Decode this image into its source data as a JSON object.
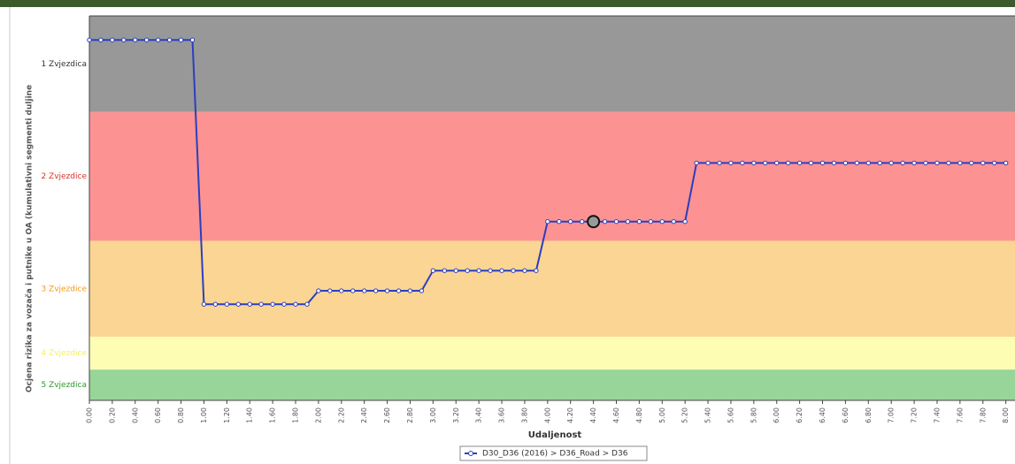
{
  "chart_data": {
    "type": "line",
    "y_axis_label": "Ocjena rizika za vozača i putnike u OA (kumulativni segmenti duljine",
    "x_axis_label": "Udaljenost",
    "bands": [
      {
        "label": "1 Zvjezdica",
        "from": 30,
        "to": 40,
        "color": "#989898",
        "text_color": "#333333"
      },
      {
        "label": "2 Zvjezdice",
        "from": 16.6,
        "to": 30,
        "color": "#fc9292",
        "text_color": "#e0302a"
      },
      {
        "label": "3 Zvjezdice",
        "from": 6.6,
        "to": 16.6,
        "color": "#fbd593",
        "text_color": "#f09a1a"
      },
      {
        "label": "4 Zvjezdice",
        "from": 3.2,
        "to": 6.6,
        "color": "#fefdb4",
        "text_color": "#f5f060"
      },
      {
        "label": "5 Zvjezdica",
        "from": 0,
        "to": 3.2,
        "color": "#98d598",
        "text_color": "#2a9a2a"
      }
    ],
    "xlim": [
      0,
      8.08
    ],
    "ylim": [
      0,
      40
    ],
    "xticks": [
      {
        "value": 0,
        "label": "0.00"
      },
      {
        "value": 0.2,
        "label": "0.20"
      },
      {
        "value": 0.4,
        "label": "0.40"
      },
      {
        "value": 0.6,
        "label": "0.60"
      },
      {
        "value": 0.8,
        "label": "0.80"
      },
      {
        "value": 1,
        "label": "1.00"
      },
      {
        "value": 1.2,
        "label": "1.20"
      },
      {
        "value": 1.4,
        "label": "1.40"
      },
      {
        "value": 1.6,
        "label": "1.60"
      },
      {
        "value": 1.8,
        "label": "1.80"
      },
      {
        "value": 2,
        "label": "2.00"
      },
      {
        "value": 2.2,
        "label": "2.20"
      },
      {
        "value": 2.4,
        "label": "2.40"
      },
      {
        "value": 2.6,
        "label": "2.60"
      },
      {
        "value": 2.8,
        "label": "2.80"
      },
      {
        "value": 3,
        "label": "3.00"
      },
      {
        "value": 3.2,
        "label": "3.20"
      },
      {
        "value": 3.4,
        "label": "3.40"
      },
      {
        "value": 3.6,
        "label": "3.60"
      },
      {
        "value": 3.8,
        "label": "3.80"
      },
      {
        "value": 4,
        "label": "4.00"
      },
      {
        "value": 4.2,
        "label": "4.20"
      },
      {
        "value": 4.4,
        "label": "4.40"
      },
      {
        "value": 4.6,
        "label": "4.60"
      },
      {
        "value": 4.8,
        "label": "4.80"
      },
      {
        "value": 5,
        "label": "5.00"
      },
      {
        "value": 5.2,
        "label": "5.20"
      },
      {
        "value": 5.4,
        "label": "5.40"
      },
      {
        "value": 5.6,
        "label": "5.60"
      },
      {
        "value": 5.8,
        "label": "5.80"
      },
      {
        "value": 6,
        "label": "6.00"
      },
      {
        "value": 6.2,
        "label": "6.20"
      },
      {
        "value": 6.4,
        "label": "6.40"
      },
      {
        "value": 6.6,
        "label": "6.60"
      },
      {
        "value": 6.8,
        "label": "6.80"
      },
      {
        "value": 7,
        "label": "7.00"
      },
      {
        "value": 7.2,
        "label": "7.20"
      },
      {
        "value": 7.4,
        "label": "7.40"
      },
      {
        "value": 7.6,
        "label": "7.60"
      },
      {
        "value": 7.8,
        "label": "7.80"
      },
      {
        "value": 8,
        "label": "8.00"
      }
    ],
    "x": [
      0,
      0.1,
      0.2,
      0.3,
      0.4,
      0.5,
      0.6,
      0.7,
      0.8,
      0.9,
      1,
      1.1,
      1.2,
      1.3,
      1.4,
      1.5,
      1.6,
      1.7,
      1.8,
      1.9,
      2,
      2.1,
      2.2,
      2.3,
      2.4,
      2.5,
      2.6,
      2.7,
      2.8,
      2.9,
      3,
      3.1,
      3.2,
      3.3,
      3.4,
      3.5,
      3.6,
      3.7,
      3.8,
      3.9,
      4,
      4.1,
      4.2,
      4.3,
      4.4,
      4.5,
      4.6,
      4.7,
      4.8,
      4.9,
      5,
      5.1,
      5.2,
      5.3,
      5.4,
      5.5,
      5.6,
      5.7,
      5.8,
      5.9,
      6,
      6.1,
      6.2,
      6.3,
      6.4,
      6.5,
      6.6,
      6.7,
      6.8,
      6.9,
      7,
      7.1,
      7.2,
      7.3,
      7.4,
      7.5,
      7.6,
      7.7,
      7.8,
      7.9,
      8
    ],
    "series": [
      {
        "name": "D30_D36 (2016) > D36_Road > D36",
        "color": "#2a3fbf",
        "values": [
          37.5,
          37.5,
          37.5,
          37.5,
          37.5,
          37.5,
          37.5,
          37.5,
          37.5,
          37.5,
          10,
          10,
          10,
          10,
          10,
          10,
          10,
          10,
          10,
          10,
          11.4,
          11.4,
          11.4,
          11.4,
          11.4,
          11.4,
          11.4,
          11.4,
          11.4,
          11.4,
          13.5,
          13.5,
          13.5,
          13.5,
          13.5,
          13.5,
          13.5,
          13.5,
          13.5,
          13.5,
          18.6,
          18.6,
          18.6,
          18.6,
          18.6,
          18.6,
          18.6,
          18.6,
          18.6,
          18.6,
          18.6,
          18.6,
          18.6,
          24.7,
          24.7,
          24.7,
          24.7,
          24.7,
          24.7,
          24.7,
          24.7,
          24.7,
          24.7,
          24.7,
          24.7,
          24.7,
          24.7,
          24.7,
          24.7,
          24.7,
          24.7,
          24.7,
          24.7,
          24.7,
          24.7,
          24.7,
          24.7,
          24.7,
          24.7,
          24.7,
          24.7
        ]
      }
    ],
    "hovered_point": 44
  }
}
